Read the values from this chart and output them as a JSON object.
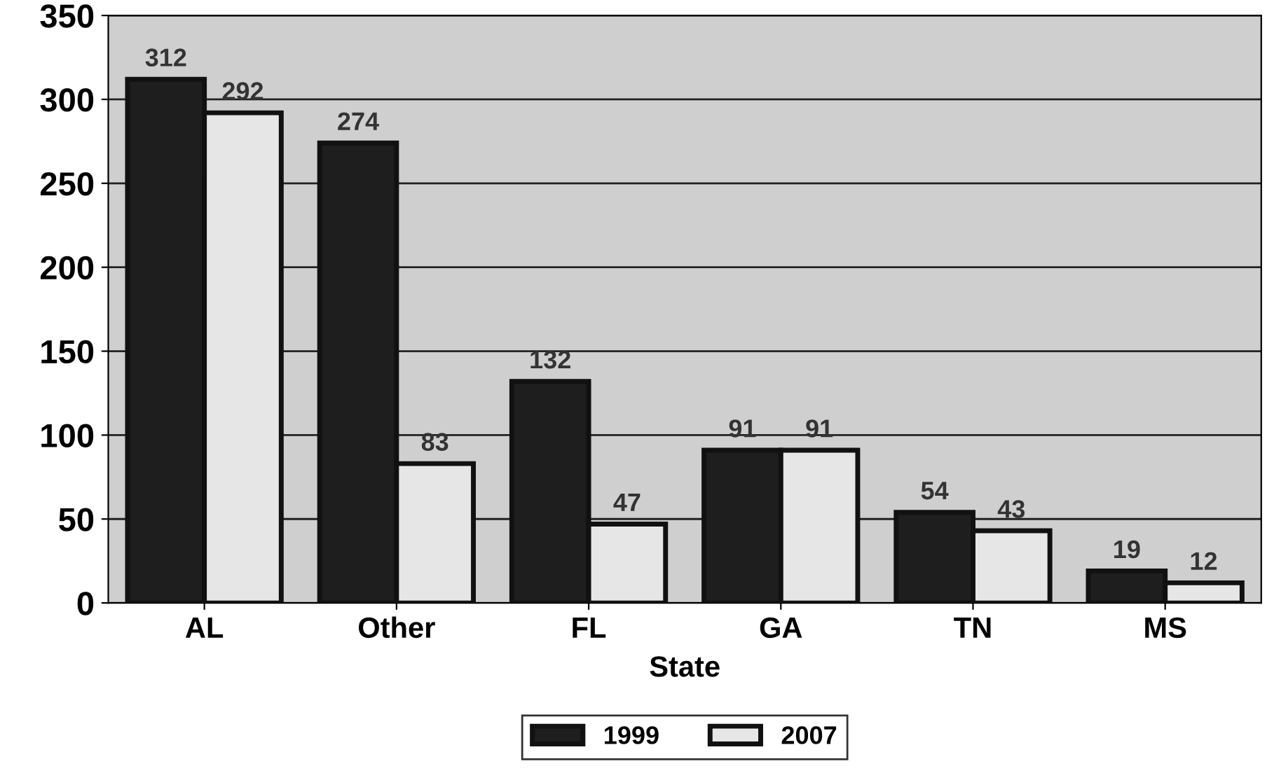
{
  "chart_data": {
    "type": "bar",
    "xlabel": "State",
    "categories": [
      "AL",
      "Other",
      "FL",
      "GA",
      "TN",
      "MS"
    ],
    "series": [
      {
        "name": "1999",
        "color": "#1e1e1e",
        "values": [
          312,
          274,
          132,
          91,
          54,
          19
        ]
      },
      {
        "name": "2007",
        "color": "#e6e6e6",
        "values": [
          292,
          83,
          47,
          91,
          43,
          12
        ]
      }
    ],
    "ylim": [
      0,
      350
    ],
    "yticks": [
      0,
      50,
      100,
      150,
      200,
      250,
      300,
      350
    ],
    "grid": "y",
    "legend": "bottom",
    "data_labels": true
  }
}
